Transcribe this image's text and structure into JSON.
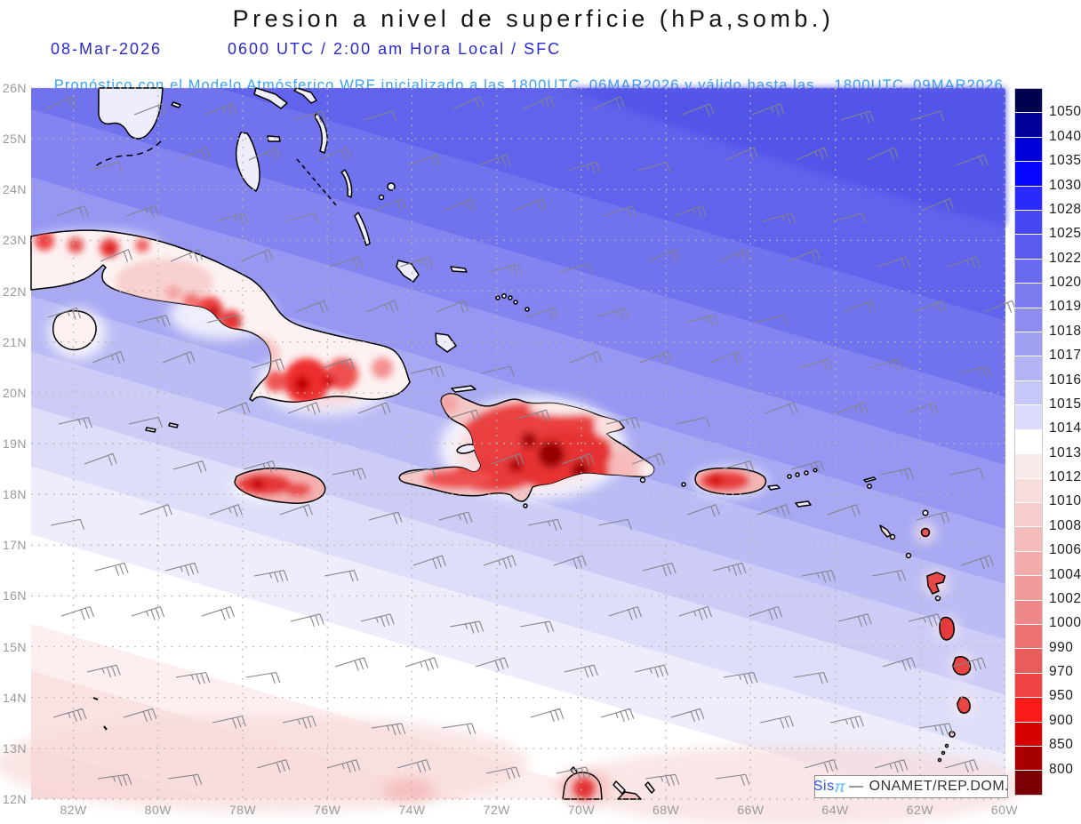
{
  "header": {
    "title": "Presion a nivel de superficie (hPa,somb.)",
    "date": "08-Mar-2026",
    "time": "0600 UTC / 2:00 am Hora Local / SFC",
    "forecast_prefix": "Pronóstico con el Modelo Atmósferico WRF inicializado a las 1800UTC_06MAR2026 y válido hasta las",
    "forecast_valid": "1800UTC_09MAR2026"
  },
  "map": {
    "lat_labels": [
      "26N",
      "25N",
      "24N",
      "23N",
      "22N",
      "21N",
      "20N",
      "19N",
      "18N",
      "17N",
      "16N",
      "15N",
      "14N",
      "13N",
      "12N"
    ],
    "lon_labels": [
      "82W",
      "80W",
      "78W",
      "76W",
      "74W",
      "72W",
      "70W",
      "68W",
      "66W",
      "64W",
      "62W",
      "60W"
    ]
  },
  "legend": {
    "unit": "hPa",
    "values": [
      "1050",
      "1040",
      "1035",
      "1030",
      "1028",
      "1025",
      "1022",
      "1020",
      "1019",
      "1018",
      "1017",
      "1016",
      "1015",
      "1014",
      "1013",
      "1012",
      "1010",
      "1008",
      "1006",
      "1004",
      "1002",
      "1000",
      "990",
      "970",
      "950",
      "900",
      "850",
      "800"
    ],
    "colors": [
      "#00004f",
      "#00009b",
      "#0000dc",
      "#0505ff",
      "#2a2afb",
      "#4646f2",
      "#5a5aef",
      "#6a6aee",
      "#7b7bef",
      "#8d8df1",
      "#a0a0f3",
      "#b3b3f5",
      "#c6c6f8",
      "#dbdbfb",
      "#ffffff",
      "#fbeaea",
      "#f9dcdc",
      "#f7cccc",
      "#f5bcbc",
      "#f3abab",
      "#f19a9a",
      "#ef8888",
      "#ec7272",
      "#e95c5c",
      "#ee4444",
      "#fb1b1b",
      "#d60000",
      "#a80000",
      "#7a0005"
    ]
  },
  "credit": {
    "system": "Sis",
    "pi_symbol": "π",
    "separator": "—",
    "org": "ONAMET/REP.DOM."
  }
}
